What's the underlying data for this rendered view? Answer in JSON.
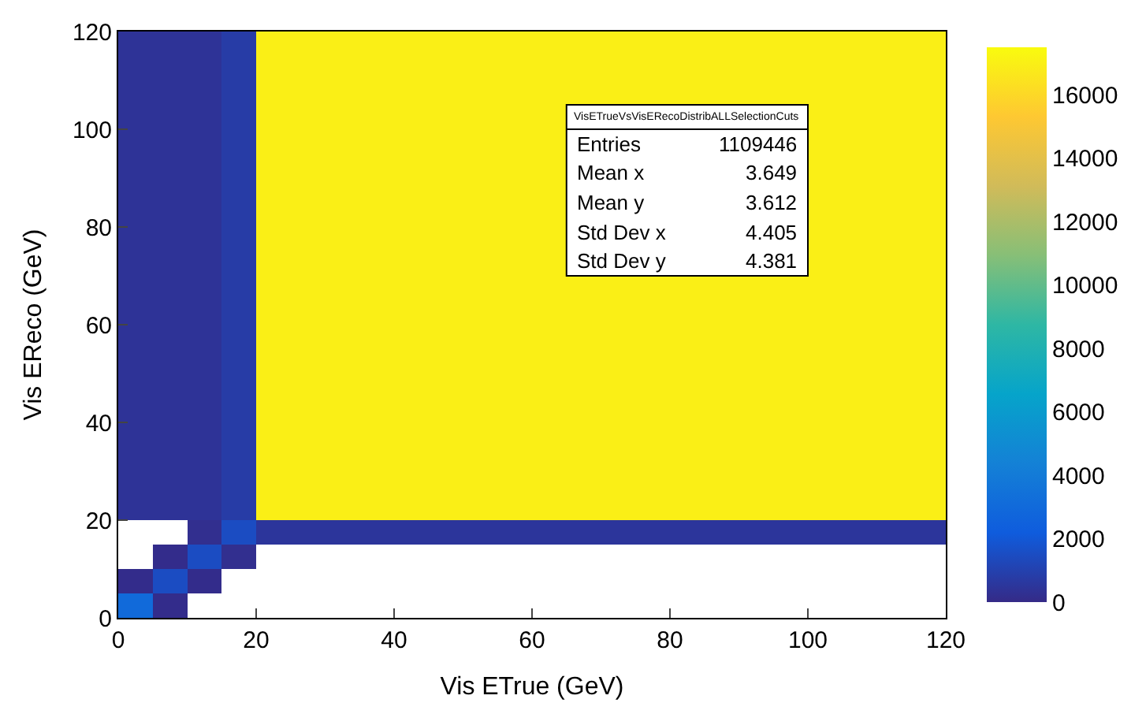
{
  "chart_data": {
    "type": "heatmap",
    "xlabel": "Vis ETrue (GeV)",
    "ylabel": "Vis EReco (GeV)",
    "x": [
      2.5,
      7.5,
      12.5,
      17.5,
      22.5,
      27.5,
      32.5,
      37.5,
      42.5,
      47.5,
      52.5,
      57.5,
      62.5,
      67.5,
      72.5,
      77.5,
      82.5,
      87.5,
      92.5,
      97.5,
      102.5,
      107.5,
      112.5,
      117.5
    ],
    "y": [
      117.5,
      112.5,
      107.5,
      102.5,
      97.5,
      92.5,
      87.5,
      82.5,
      77.5,
      72.5,
      67.5,
      62.5,
      57.5,
      52.5,
      47.5,
      42.5,
      37.5,
      32.5,
      27.5,
      22.5,
      17.5,
      12.5,
      7.5,
      2.5
    ],
    "cells": [
      [
        400,
        400,
        400,
        800,
        17000,
        17000,
        17000,
        17000,
        17000,
        17000,
        17000,
        17000,
        17000,
        17000,
        17000,
        17000,
        17000,
        17000,
        17000,
        17000,
        17000,
        17000,
        17000,
        17000
      ],
      [
        400,
        400,
        400,
        800,
        17000,
        17000,
        17000,
        17000,
        17000,
        17000,
        17000,
        17000,
        17000,
        17000,
        17000,
        17000,
        17000,
        17000,
        17000,
        17000,
        17000,
        17000,
        17000,
        17000
      ],
      [
        400,
        400,
        400,
        800,
        17000,
        17000,
        17000,
        17000,
        17000,
        17000,
        17000,
        17000,
        17000,
        17000,
        17000,
        17000,
        17000,
        17000,
        17000,
        17000,
        17000,
        17000,
        17000,
        17000
      ],
      [
        400,
        400,
        400,
        800,
        17000,
        17000,
        17000,
        17000,
        17000,
        17000,
        17000,
        17000,
        17000,
        null,
        null,
        null,
        null,
        null,
        null,
        null,
        17000,
        17000,
        17000,
        17000
      ],
      [
        400,
        400,
        400,
        800,
        17000,
        17000,
        17000,
        17000,
        17000,
        17000,
        17000,
        17000,
        17000,
        null,
        null,
        null,
        null,
        null,
        null,
        null,
        17000,
        17000,
        17000,
        17000
      ],
      [
        400,
        400,
        400,
        800,
        17000,
        17000,
        17000,
        17000,
        17000,
        17000,
        17000,
        17000,
        17000,
        null,
        null,
        null,
        null,
        null,
        null,
        null,
        17000,
        17000,
        17000,
        17000
      ],
      [
        400,
        400,
        400,
        800,
        17000,
        17000,
        17000,
        17000,
        17000,
        17000,
        17000,
        17000,
        17000,
        null,
        null,
        null,
        null,
        null,
        null,
        null,
        17000,
        17000,
        17000,
        17000
      ],
      [
        400,
        400,
        400,
        800,
        17000,
        17000,
        17000,
        17000,
        17000,
        17000,
        17000,
        17000,
        17000,
        null,
        null,
        null,
        null,
        null,
        null,
        null,
        17000,
        17000,
        17000,
        17000
      ],
      [
        400,
        400,
        400,
        800,
        17000,
        17000,
        17000,
        17000,
        17000,
        17000,
        17000,
        17000,
        17000,
        null,
        null,
        null,
        null,
        null,
        null,
        null,
        17000,
        17000,
        17000,
        17000
      ],
      [
        400,
        400,
        400,
        800,
        17000,
        17000,
        17000,
        17000,
        17000,
        17000,
        17000,
        17000,
        17000,
        null,
        null,
        null,
        null,
        null,
        null,
        null,
        17000,
        17000,
        17000,
        17000
      ],
      [
        400,
        400,
        400,
        800,
        17000,
        17000,
        17000,
        17000,
        17000,
        17000,
        17000,
        17000,
        17000,
        17000,
        17000,
        17000,
        17000,
        17000,
        17000,
        17000,
        17000,
        17000,
        17000,
        17000
      ],
      [
        400,
        400,
        400,
        800,
        17000,
        17000,
        17000,
        17000,
        17000,
        17000,
        17000,
        17000,
        17000,
        17000,
        17000,
        17000,
        17000,
        17000,
        17000,
        17000,
        17000,
        17000,
        17000,
        17000
      ],
      [
        400,
        400,
        400,
        800,
        17000,
        17000,
        17000,
        17000,
        17000,
        17000,
        17000,
        17000,
        17000,
        17000,
        17000,
        17000,
        17000,
        17000,
        17000,
        17000,
        17000,
        17000,
        17000,
        17000
      ],
      [
        400,
        400,
        400,
        800,
        17000,
        17000,
        17000,
        17000,
        17000,
        17000,
        17000,
        17000,
        17000,
        17000,
        17000,
        17000,
        17000,
        17000,
        17000,
        17000,
        17000,
        17000,
        17000,
        17000
      ],
      [
        400,
        400,
        400,
        800,
        17000,
        17000,
        17000,
        17000,
        17000,
        17000,
        17000,
        17000,
        17000,
        17000,
        17000,
        17000,
        17000,
        17000,
        17000,
        17000,
        17000,
        17000,
        17000,
        17000
      ],
      [
        400,
        400,
        400,
        800,
        17000,
        17000,
        17000,
        17000,
        17000,
        17000,
        17000,
        17000,
        17000,
        17000,
        17000,
        17000,
        17000,
        17000,
        17000,
        17000,
        17000,
        17000,
        17000,
        17000
      ],
      [
        400,
        400,
        400,
        800,
        17000,
        17000,
        17000,
        17000,
        17000,
        17000,
        17000,
        17000,
        17000,
        17000,
        17000,
        17000,
        17000,
        17000,
        17000,
        17000,
        17000,
        17000,
        17000,
        17000
      ],
      [
        400,
        400,
        400,
        800,
        17000,
        17000,
        17000,
        17000,
        17000,
        17000,
        17000,
        17000,
        17000,
        17000,
        17000,
        17000,
        17000,
        17000,
        17000,
        17000,
        17000,
        17000,
        17000,
        17000
      ],
      [
        400,
        400,
        400,
        800,
        17000,
        17000,
        17000,
        17000,
        17000,
        17000,
        17000,
        17000,
        17000,
        17000,
        17000,
        17000,
        17000,
        17000,
        17000,
        17000,
        17000,
        17000,
        17000,
        17000
      ],
      [
        400,
        400,
        400,
        800,
        17000,
        17000,
        17000,
        17000,
        17000,
        17000,
        17000,
        17000,
        17000,
        17000,
        17000,
        17000,
        17000,
        17000,
        17000,
        17000,
        17000,
        17000,
        17000,
        17000
      ],
      [
        null,
        null,
        200,
        1500,
        500,
        500,
        500,
        500,
        500,
        500,
        500,
        500,
        500,
        500,
        500,
        500,
        500,
        500,
        500,
        500,
        500,
        500,
        500,
        500
      ],
      [
        null,
        100,
        1500,
        200,
        null,
        null,
        null,
        null,
        null,
        null,
        null,
        null,
        null,
        null,
        null,
        null,
        null,
        null,
        null,
        null,
        null,
        null,
        null,
        null
      ],
      [
        100,
        1500,
        100,
        null,
        null,
        null,
        null,
        null,
        null,
        null,
        null,
        null,
        null,
        null,
        null,
        null,
        null,
        null,
        null,
        null,
        null,
        null,
        null,
        null
      ],
      [
        3000,
        100,
        null,
        null,
        null,
        null,
        null,
        null,
        null,
        null,
        null,
        null,
        null,
        null,
        null,
        null,
        null,
        null,
        null,
        null,
        null,
        null,
        null,
        null
      ]
    ],
    "clim": [
      0,
      17500
    ],
    "cticks": [
      0,
      2000,
      4000,
      6000,
      8000,
      10000,
      12000,
      14000,
      16000
    ],
    "xlim": [
      0,
      120
    ],
    "xticks": [
      0,
      20,
      40,
      60,
      80,
      100,
      120
    ],
    "ylim": [
      0,
      120
    ],
    "yticks": [
      0,
      20,
      40,
      60,
      80,
      100,
      120
    ],
    "annotations": [
      "VisETrueVsVisERecoDistribALLSelectionCuts",
      "Entries 1109446",
      "Mean x 3.649",
      "Mean y 3.612",
      "Std Dev x 4.405",
      "Std Dev y 4.381"
    ]
  }
}
